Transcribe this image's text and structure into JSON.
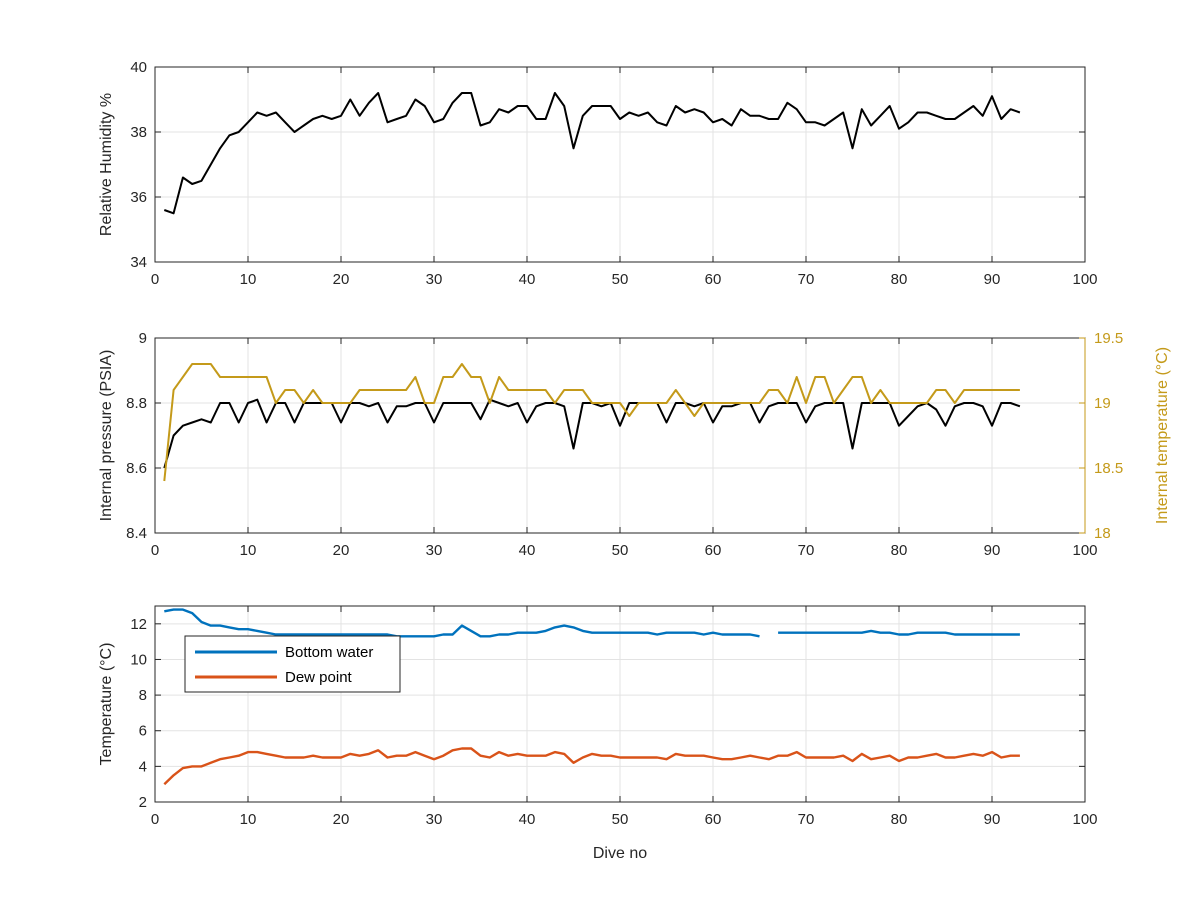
{
  "figure": {
    "background": "#ffffff",
    "axis_color": "#262626",
    "grid_color": "#e3e3e3"
  },
  "chart_data": [
    {
      "type": "line",
      "title": "",
      "xlabel": "",
      "ylabel": "Relative Humidity %",
      "xlim": [
        0,
        100
      ],
      "ylim": [
        34,
        40
      ],
      "xticks": [
        0,
        10,
        20,
        30,
        40,
        50,
        60,
        70,
        80,
        90,
        100
      ],
      "yticks": [
        34,
        36,
        38,
        40
      ],
      "grid": true,
      "series": [
        {
          "color": "#000000",
          "x": [
            1,
            2,
            3,
            4,
            5,
            6,
            7,
            8,
            9,
            10,
            11,
            12,
            13,
            14,
            15,
            16,
            17,
            18,
            19,
            20,
            21,
            22,
            23,
            24,
            25,
            26,
            27,
            28,
            29,
            30,
            31,
            32,
            33,
            34,
            35,
            36,
            37,
            38,
            39,
            40,
            41,
            42,
            43,
            44,
            45,
            46,
            47,
            48,
            49,
            50,
            51,
            52,
            53,
            54,
            55,
            56,
            57,
            58,
            59,
            60,
            61,
            62,
            63,
            64,
            65,
            66,
            67,
            68,
            69,
            70,
            71,
            72,
            73,
            74,
            75,
            76,
            77,
            78,
            79,
            80,
            81,
            82,
            83,
            84,
            85,
            86,
            87,
            88,
            89,
            90,
            91,
            92,
            93
          ],
          "y": [
            35.6,
            35.5,
            36.6,
            36.4,
            36.5,
            37.0,
            37.5,
            37.9,
            38.0,
            38.3,
            38.6,
            38.5,
            38.6,
            38.3,
            38.0,
            38.2,
            38.4,
            38.5,
            38.4,
            38.5,
            39.0,
            38.5,
            38.9,
            39.2,
            38.3,
            38.4,
            38.5,
            39.0,
            38.8,
            38.3,
            38.4,
            38.9,
            39.2,
            39.2,
            38.2,
            38.3,
            38.7,
            38.6,
            38.8,
            38.8,
            38.4,
            38.4,
            39.2,
            38.8,
            37.5,
            38.5,
            38.8,
            38.8,
            38.8,
            38.4,
            38.6,
            38.5,
            38.6,
            38.3,
            38.2,
            38.8,
            38.6,
            38.7,
            38.6,
            38.3,
            38.4,
            38.2,
            38.7,
            38.5,
            38.5,
            38.4,
            38.4,
            38.9,
            38.7,
            38.3,
            38.3,
            38.2,
            38.4,
            38.6,
            37.5,
            38.7,
            38.2,
            38.5,
            38.8,
            38.1,
            38.3,
            38.6,
            38.6,
            38.5,
            38.4,
            38.4,
            38.6,
            38.8,
            38.5,
            39.1,
            38.4,
            38.7,
            38.6
          ]
        }
      ]
    },
    {
      "type": "line",
      "title": "",
      "xlabel": "",
      "ylabel": "Internal pressure (PSIA)",
      "ylabel_right": "Internal temperature (°C)",
      "xlim": [
        0,
        100
      ],
      "ylim": [
        8.4,
        9.0
      ],
      "ylim_right": [
        18,
        19.5
      ],
      "xticks": [
        0,
        10,
        20,
        30,
        40,
        50,
        60,
        70,
        80,
        90,
        100
      ],
      "yticks": [
        8.4,
        8.6,
        8.8,
        9.0
      ],
      "yticks_right": [
        18,
        18.5,
        19,
        19.5
      ],
      "grid": true,
      "series": [
        {
          "axis": "left",
          "color": "#000000",
          "x": [
            1,
            2,
            3,
            4,
            5,
            6,
            7,
            8,
            9,
            10,
            11,
            12,
            13,
            14,
            15,
            16,
            17,
            18,
            19,
            20,
            21,
            22,
            23,
            24,
            25,
            26,
            27,
            28,
            29,
            30,
            31,
            32,
            33,
            34,
            35,
            36,
            37,
            38,
            39,
            40,
            41,
            42,
            43,
            44,
            45,
            46,
            47,
            48,
            49,
            50,
            51,
            52,
            53,
            54,
            55,
            56,
            57,
            58,
            59,
            60,
            61,
            62,
            63,
            64,
            65,
            66,
            67,
            68,
            69,
            70,
            71,
            72,
            73,
            74,
            75,
            76,
            77,
            78,
            79,
            80,
            81,
            82,
            83,
            84,
            85,
            86,
            87,
            88,
            89,
            90,
            91,
            92,
            93
          ],
          "y": [
            8.6,
            8.7,
            8.73,
            8.74,
            8.75,
            8.74,
            8.8,
            8.8,
            8.74,
            8.8,
            8.81,
            8.74,
            8.8,
            8.8,
            8.74,
            8.8,
            8.8,
            8.8,
            8.8,
            8.74,
            8.8,
            8.8,
            8.79,
            8.8,
            8.74,
            8.79,
            8.79,
            8.8,
            8.8,
            8.74,
            8.8,
            8.8,
            8.8,
            8.8,
            8.75,
            8.81,
            8.8,
            8.79,
            8.8,
            8.74,
            8.79,
            8.8,
            8.8,
            8.79,
            8.66,
            8.8,
            8.8,
            8.79,
            8.8,
            8.73,
            8.8,
            8.8,
            8.8,
            8.8,
            8.74,
            8.8,
            8.8,
            8.79,
            8.8,
            8.74,
            8.79,
            8.79,
            8.8,
            8.8,
            8.74,
            8.79,
            8.8,
            8.8,
            8.8,
            8.74,
            8.79,
            8.8,
            8.8,
            8.8,
            8.66,
            8.8,
            8.8,
            8.8,
            8.8,
            8.73,
            8.76,
            8.79,
            8.8,
            8.78,
            8.73,
            8.79,
            8.8,
            8.8,
            8.79,
            8.73,
            8.8,
            8.8,
            8.79
          ]
        },
        {
          "axis": "right",
          "color": "#c49a1a",
          "x": [
            1,
            2,
            3,
            4,
            5,
            6,
            7,
            8,
            9,
            10,
            11,
            12,
            13,
            14,
            15,
            16,
            17,
            18,
            19,
            20,
            21,
            22,
            23,
            24,
            25,
            26,
            27,
            28,
            29,
            30,
            31,
            32,
            33,
            34,
            35,
            36,
            37,
            38,
            39,
            40,
            41,
            42,
            43,
            44,
            45,
            46,
            47,
            48,
            49,
            50,
            51,
            52,
            53,
            54,
            55,
            56,
            57,
            58,
            59,
            60,
            61,
            62,
            63,
            64,
            65,
            66,
            67,
            68,
            69,
            70,
            71,
            72,
            73,
            74,
            75,
            76,
            77,
            78,
            79,
            80,
            81,
            82,
            83,
            84,
            85,
            86,
            87,
            88,
            89,
            90,
            91,
            92,
            93
          ],
          "y": [
            18.4,
            19.1,
            19.2,
            19.3,
            19.3,
            19.3,
            19.2,
            19.2,
            19.2,
            19.2,
            19.2,
            19.2,
            19.0,
            19.1,
            19.1,
            19.0,
            19.1,
            19.0,
            19.0,
            19.0,
            19.0,
            19.1,
            19.1,
            19.1,
            19.1,
            19.1,
            19.1,
            19.2,
            19.0,
            19.0,
            19.2,
            19.2,
            19.3,
            19.2,
            19.2,
            19.0,
            19.2,
            19.1,
            19.1,
            19.1,
            19.1,
            19.1,
            19.0,
            19.1,
            19.1,
            19.1,
            19.0,
            19.0,
            19.0,
            19.0,
            18.9,
            19.0,
            19.0,
            19.0,
            19.0,
            19.1,
            19.0,
            18.9,
            19.0,
            19.0,
            19.0,
            19.0,
            19.0,
            19.0,
            19.0,
            19.1,
            19.1,
            19.0,
            19.2,
            19.0,
            19.2,
            19.2,
            19.0,
            19.1,
            19.2,
            19.2,
            19.0,
            19.1,
            19.0,
            19.0,
            19.0,
            19.0,
            19.0,
            19.1,
            19.1,
            19.0,
            19.1,
            19.1,
            19.1,
            19.1,
            19.1,
            19.1,
            19.1
          ]
        }
      ]
    },
    {
      "type": "line",
      "title": "",
      "xlabel": "Dive no",
      "ylabel": "Temperature (°C)",
      "xlim": [
        0,
        100
      ],
      "ylim": [
        2,
        13
      ],
      "xticks": [
        0,
        10,
        20,
        30,
        40,
        50,
        60,
        70,
        80,
        90,
        100
      ],
      "yticks": [
        2,
        4,
        6,
        8,
        10,
        12
      ],
      "grid": true,
      "legend": {
        "placement": "top-left",
        "entries": [
          "Bottom water",
          "Dew point"
        ]
      },
      "series": [
        {
          "name": "Bottom water",
          "color": "#0072bd",
          "x": [
            1,
            2,
            3,
            4,
            5,
            6,
            7,
            8,
            9,
            10,
            11,
            12,
            13,
            14,
            15,
            16,
            17,
            18,
            19,
            20,
            21,
            22,
            23,
            24,
            25,
            26,
            27,
            28,
            29,
            30,
            31,
            32,
            33,
            34,
            35,
            36,
            37,
            38,
            39,
            40,
            41,
            42,
            43,
            44,
            45,
            46,
            47,
            48,
            49,
            50,
            51,
            52,
            53,
            54,
            55,
            56,
            57,
            58,
            59,
            60,
            61,
            62,
            63,
            64,
            65,
            null,
            67,
            68,
            69,
            70,
            71,
            72,
            73,
            74,
            75,
            76,
            77,
            78,
            79,
            80,
            81,
            82,
            83,
            84,
            85,
            86,
            87,
            88,
            89,
            90,
            91,
            92,
            93
          ],
          "y": [
            12.7,
            12.8,
            12.8,
            12.6,
            12.1,
            11.9,
            11.9,
            11.8,
            11.7,
            11.7,
            11.6,
            11.5,
            11.4,
            11.4,
            11.4,
            11.4,
            11.4,
            11.4,
            11.4,
            11.4,
            11.4,
            11.4,
            11.4,
            11.4,
            11.4,
            11.3,
            11.3,
            11.3,
            11.3,
            11.3,
            11.4,
            11.4,
            11.9,
            11.6,
            11.3,
            11.3,
            11.4,
            11.4,
            11.5,
            11.5,
            11.5,
            11.6,
            11.8,
            11.9,
            11.8,
            11.6,
            11.5,
            11.5,
            11.5,
            11.5,
            11.5,
            11.5,
            11.5,
            11.4,
            11.5,
            11.5,
            11.5,
            11.5,
            11.4,
            11.5,
            11.4,
            11.4,
            11.4,
            11.4,
            11.3,
            null,
            11.5,
            11.5,
            11.5,
            11.5,
            11.5,
            11.5,
            11.5,
            11.5,
            11.5,
            11.5,
            11.6,
            11.5,
            11.5,
            11.4,
            11.4,
            11.5,
            11.5,
            11.5,
            11.5,
            11.4,
            11.4,
            11.4,
            11.4,
            11.4,
            11.4,
            11.4,
            11.4
          ]
        },
        {
          "name": "Dew point",
          "color": "#d95319",
          "x": [
            1,
            2,
            3,
            4,
            5,
            6,
            7,
            8,
            9,
            10,
            11,
            12,
            13,
            14,
            15,
            16,
            17,
            18,
            19,
            20,
            21,
            22,
            23,
            24,
            25,
            26,
            27,
            28,
            29,
            30,
            31,
            32,
            33,
            34,
            35,
            36,
            37,
            38,
            39,
            40,
            41,
            42,
            43,
            44,
            45,
            46,
            47,
            48,
            49,
            50,
            51,
            52,
            53,
            54,
            55,
            56,
            57,
            58,
            59,
            60,
            61,
            62,
            63,
            64,
            65,
            66,
            67,
            68,
            69,
            70,
            71,
            72,
            73,
            74,
            75,
            76,
            77,
            78,
            79,
            80,
            81,
            82,
            83,
            84,
            85,
            86,
            87,
            88,
            89,
            90,
            91,
            92,
            93
          ],
          "y": [
            3.0,
            3.5,
            3.9,
            4.0,
            4.0,
            4.2,
            4.4,
            4.5,
            4.6,
            4.8,
            4.8,
            4.7,
            4.6,
            4.5,
            4.5,
            4.5,
            4.6,
            4.5,
            4.5,
            4.5,
            4.7,
            4.6,
            4.7,
            4.9,
            4.5,
            4.6,
            4.6,
            4.8,
            4.6,
            4.4,
            4.6,
            4.9,
            5.0,
            5.0,
            4.6,
            4.5,
            4.8,
            4.6,
            4.7,
            4.6,
            4.6,
            4.6,
            4.8,
            4.7,
            4.2,
            4.5,
            4.7,
            4.6,
            4.6,
            4.5,
            4.5,
            4.5,
            4.5,
            4.5,
            4.4,
            4.7,
            4.6,
            4.6,
            4.6,
            4.5,
            4.4,
            4.4,
            4.5,
            4.6,
            4.5,
            4.4,
            4.6,
            4.6,
            4.8,
            4.5,
            4.5,
            4.5,
            4.5,
            4.6,
            4.3,
            4.7,
            4.4,
            4.5,
            4.6,
            4.3,
            4.5,
            4.5,
            4.6,
            4.7,
            4.5,
            4.5,
            4.6,
            4.7,
            4.6,
            4.8,
            4.5,
            4.6,
            4.6
          ]
        }
      ]
    }
  ]
}
